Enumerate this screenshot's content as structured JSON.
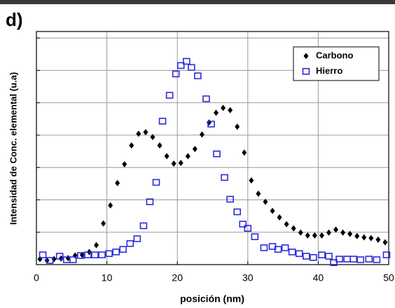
{
  "chart_data": {
    "type": "scatter",
    "title": "d)",
    "xlabel": "posición (nm)",
    "ylabel": "Intensidad de Conc. elemental (u.a)",
    "xlim": [
      0,
      50
    ],
    "ylim": [
      0,
      7.2
    ],
    "xticks": [
      0,
      10,
      20,
      30,
      40,
      50
    ],
    "yticks": [
      0,
      1,
      2,
      3,
      4,
      5,
      6,
      7
    ],
    "ytick_labels_shown": false,
    "grid": true,
    "legend": "upper right",
    "series": [
      {
        "name": "Carbono",
        "color": "#000000",
        "marker": "diamond",
        "x": [
          0.5,
          1.5,
          2.5,
          3.5,
          4.5,
          5.5,
          6.5,
          7.5,
          8.5,
          9.5,
          10.5,
          11.5,
          12.5,
          13.5,
          14.5,
          15.5,
          16.5,
          17.5,
          18.5,
          19.5,
          20.5,
          21.5,
          22.5,
          23.5,
          24.5,
          25.5,
          26.5,
          27.5,
          28.5,
          29.5,
          30.5,
          31.5,
          32.5,
          33.5,
          34.5,
          35.5,
          36.5,
          37.5,
          38.5,
          39.5,
          40.5,
          41.5,
          42.5,
          43.5,
          44.5,
          45.5,
          46.5,
          47.5,
          48.5,
          49.5
        ],
        "values": [
          0.17,
          0.13,
          0.17,
          0.19,
          0.2,
          0.28,
          0.3,
          0.39,
          0.6,
          1.27,
          1.83,
          2.52,
          3.1,
          3.68,
          4.04,
          4.09,
          3.94,
          3.68,
          3.35,
          3.12,
          3.14,
          3.35,
          3.57,
          4.02,
          4.39,
          4.69,
          4.84,
          4.77,
          4.26,
          3.46,
          2.6,
          2.19,
          1.94,
          1.66,
          1.46,
          1.25,
          1.12,
          0.99,
          0.9,
          0.9,
          0.9,
          0.99,
          1.08,
          0.99,
          0.95,
          0.88,
          0.84,
          0.82,
          0.77,
          0.69
        ]
      },
      {
        "name": "Hierro",
        "color": "#2b2bd9",
        "marker": "square",
        "x": [
          0.9,
          1.9,
          3.3,
          4.3,
          5.2,
          6.3,
          7.3,
          8.3,
          9.3,
          10.3,
          11.3,
          12.3,
          13.3,
          14.3,
          15.2,
          16.1,
          17.0,
          17.9,
          18.9,
          19.8,
          20.5,
          21.3,
          22.0,
          22.9,
          24.1,
          24.8,
          25.6,
          26.7,
          27.5,
          28.5,
          29.3,
          30.0,
          31.0,
          32.3,
          33.5,
          34.3,
          35.3,
          36.3,
          37.3,
          38.3,
          39.3,
          40.5,
          41.5,
          42.2,
          43.0,
          44.1,
          45.0,
          46.0,
          47.2,
          48.3,
          49.7
        ],
        "values": [
          0.3,
          0.13,
          0.26,
          0.15,
          0.15,
          0.28,
          0.3,
          0.3,
          0.3,
          0.34,
          0.39,
          0.47,
          0.65,
          0.8,
          1.2,
          1.94,
          2.54,
          4.43,
          5.23,
          5.89,
          6.15,
          6.28,
          6.09,
          5.83,
          5.12,
          4.34,
          3.42,
          2.69,
          2.02,
          1.63,
          1.25,
          1.12,
          0.86,
          0.52,
          0.56,
          0.47,
          0.52,
          0.39,
          0.34,
          0.26,
          0.22,
          0.3,
          0.26,
          0.06,
          0.17,
          0.17,
          0.17,
          0.15,
          0.17,
          0.15,
          0.3
        ]
      }
    ]
  }
}
